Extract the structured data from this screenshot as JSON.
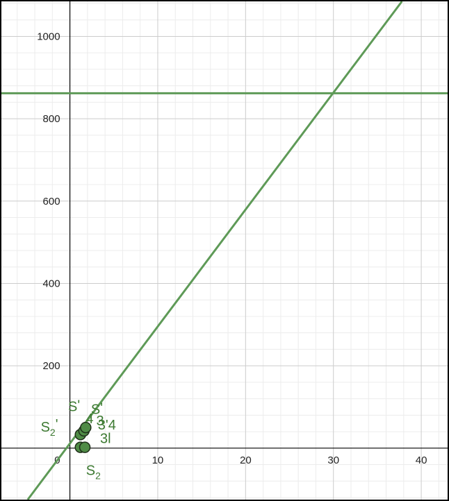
{
  "chart_data": {
    "type": "line",
    "title": "",
    "xlabel": "",
    "ylabel": "",
    "xlim": [
      -7.8,
      43
    ],
    "ylim": [
      -125,
      1085
    ],
    "grid": true,
    "x_ticks": [
      {
        "value": 10,
        "label": "10"
      },
      {
        "value": 20,
        "label": "20"
      },
      {
        "value": 30,
        "label": "30"
      },
      {
        "value": 40,
        "label": "40"
      }
    ],
    "y_ticks": [
      {
        "value": 200,
        "label": "200"
      },
      {
        "value": 400,
        "label": "400"
      },
      {
        "value": 600,
        "label": "600"
      },
      {
        "value": 800,
        "label": "800"
      },
      {
        "value": 1000,
        "label": "1000"
      }
    ],
    "origin_label": "0",
    "series": [
      {
        "kind": "line",
        "x": [
          -4.8,
          37.8
        ],
        "y": [
          -125,
          1085
        ]
      },
      {
        "kind": "hline",
        "y": 862
      }
    ],
    "points": [
      {
        "x": 1.2,
        "y": 2,
        "label": "S",
        "sub": "2",
        "prime": ""
      },
      {
        "x": 1.7,
        "y": 2,
        "label": "3l",
        "sub": "",
        "prime": ""
      },
      {
        "x": 1.2,
        "y": 33,
        "label": "S",
        "sub": "2",
        "prime": "'"
      },
      {
        "x": 1.6,
        "y": 42,
        "label": "3'4",
        "sub": "",
        "prime": ""
      },
      {
        "x": 1.8,
        "y": 50,
        "label": "4",
        "sub": "",
        "prime": ""
      }
    ],
    "extra_labels": [
      {
        "text": "S",
        "sub": "",
        "prime": "'",
        "x": -0.2,
        "y": 90
      },
      {
        "text": "S",
        "sub": "",
        "prime": "'",
        "x": 2.4,
        "y": 83
      },
      {
        "text": "3",
        "sub": "",
        "prime": "",
        "x": 3.0,
        "y": 55
      }
    ],
    "colors": {
      "curve": "#5e9a57",
      "point_fill": "#4f8b46",
      "label": "#3d7a32",
      "grid_major": "#cccccc",
      "grid_minor": "#ececec",
      "axis": "#000000"
    }
  }
}
